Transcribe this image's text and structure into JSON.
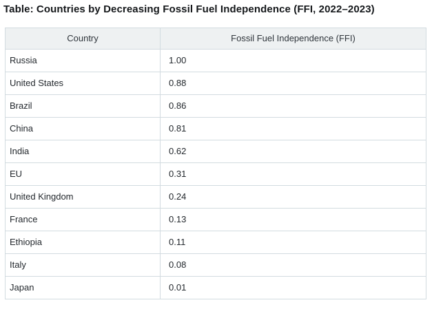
{
  "title": "Table: Countries by Decreasing Fossil Fuel Independence (FFI, 2022–2023)",
  "table": {
    "columns": [
      "Country",
      "Fossil Fuel Independence (FFI)"
    ],
    "rows": [
      [
        "Russia",
        "1.00"
      ],
      [
        "United States",
        "0.88"
      ],
      [
        "Brazil",
        "0.86"
      ],
      [
        "China",
        "0.81"
      ],
      [
        "India",
        "0.62"
      ],
      [
        "EU",
        "0.31"
      ],
      [
        "United Kingdom",
        "0.24"
      ],
      [
        "France",
        "0.13"
      ],
      [
        "Ethiopia",
        "0.11"
      ],
      [
        "Italy",
        "0.08"
      ],
      [
        "Japan",
        "0.01"
      ]
    ]
  },
  "colors": {
    "title_text": "#14171a",
    "header_background": "#eef1f2",
    "header_text": "#2f353b",
    "cell_text": "#23282d",
    "grid_border": "#d2dbe0",
    "page_background": "#ffffff"
  },
  "chart_data": {
    "type": "table",
    "title": "Table: Countries by Decreasing Fossil Fuel Independence (FFI, 2022–2023)",
    "columns": [
      "Country",
      "Fossil Fuel Independence (FFI)"
    ],
    "categories": [
      "Russia",
      "United States",
      "Brazil",
      "China",
      "India",
      "EU",
      "United Kingdom",
      "France",
      "Ethiopia",
      "Italy",
      "Japan"
    ],
    "values": [
      1.0,
      0.88,
      0.86,
      0.81,
      0.62,
      0.31,
      0.24,
      0.13,
      0.11,
      0.08,
      0.01
    ],
    "sort_order": "decreasing",
    "grid": true,
    "header_alignment": "center",
    "cell_alignment": "left"
  }
}
